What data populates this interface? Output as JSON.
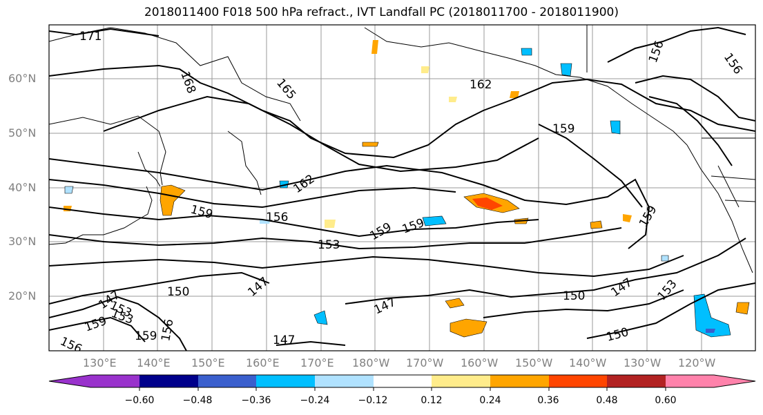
{
  "title": "2018011400 F018 500 hPa refract., IVT Landfall PC (2018011700 - 2018011900)",
  "lat_labels": [
    "60°N",
    "50°N",
    "40°N",
    "30°N",
    "20°N"
  ],
  "lon_labels": [
    "130°E",
    "140°E",
    "150°E",
    "160°E",
    "170°E",
    "180°W",
    "170°W",
    "160°W",
    "150°W",
    "140°W",
    "130°W",
    "120°W"
  ],
  "contour_labels": [
    "171",
    "168",
    "165",
    "162",
    "159",
    "156",
    "162",
    "159",
    "156",
    "153",
    "159",
    "159",
    "153",
    "150",
    "147",
    "147",
    "150",
    "147",
    "150",
    "153",
    "153",
    "159",
    "147",
    "147",
    "159",
    "156",
    "156",
    "156",
    "159"
  ],
  "colorbar": {
    "colors": [
      "#9932cc",
      "#00008b",
      "#3a5fcd",
      "#00bfff",
      "#b0e2ff",
      "#ffffff",
      "#ffec8b",
      "#ffa500",
      "#ff4500",
      "#b22222",
      "#ff82ab"
    ],
    "tick_labels": [
      "−0.60",
      "−0.48",
      "−0.36",
      "−0.24",
      "−0.12",
      "0.12",
      "0.24",
      "0.36",
      "0.48",
      "0.60"
    ]
  }
}
